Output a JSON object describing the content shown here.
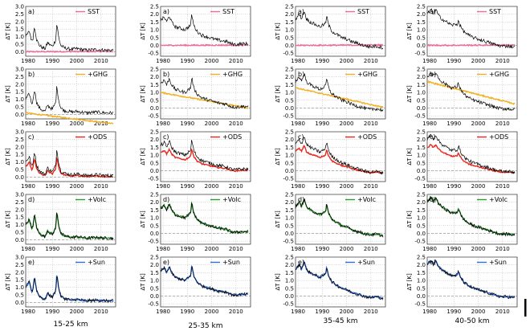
{
  "chart_data": {
    "type": "line",
    "columns": [
      {
        "label": "15-25 km"
      },
      {
        "label": "25-35 km"
      },
      {
        "label": "35-45 km"
      },
      {
        "label": "40-50 km"
      }
    ],
    "rows": [
      {
        "panel_label": "a)",
        "legend": "SST",
        "color": "#f06a9a"
      },
      {
        "panel_label": "b)",
        "legend": "+GHG",
        "color": "#f2b01e"
      },
      {
        "panel_label": "c)",
        "legend": "+ODS",
        "color": "#e8281e"
      },
      {
        "panel_label": "d)",
        "legend": "+Volc",
        "color": "#2a9d2a"
      },
      {
        "panel_label": "e)",
        "legend": "+Sun",
        "color": "#2f6fe0"
      }
    ],
    "ylabel": "ΔT [K]",
    "xlim": [
      1979,
      2016
    ],
    "xticks": [
      "1980",
      "1990",
      "2000",
      "2010"
    ],
    "ylim_by_column": [
      [
        -0.3,
        3.0
      ],
      [
        -0.7,
        2.5
      ],
      [
        -0.7,
        2.5
      ],
      [
        -0.7,
        2.5
      ]
    ],
    "yticks_by_column": [
      [
        "0.0",
        "0.5",
        "1.0",
        "1.5",
        "2.0",
        "2.5",
        "3.0"
      ],
      [
        "-0.5",
        "0.0",
        "0.5",
        "1.0",
        "1.5",
        "2.0",
        "2.5"
      ],
      [
        "-0.5",
        "0.0",
        "0.5",
        "1.0",
        "1.5",
        "2.0",
        "2.5"
      ],
      [
        "-0.5",
        "0.0",
        "0.5",
        "1.0",
        "1.5",
        "2.0",
        "2.5"
      ]
    ],
    "observed_keyframes_by_column": [
      [
        [
          1979,
          1.0
        ],
        [
          1980.5,
          1.35
        ],
        [
          1981.5,
          0.7
        ],
        [
          1982,
          0.9
        ],
        [
          1982.6,
          1.7
        ],
        [
          1983.5,
          0.8
        ],
        [
          1984.5,
          0.45
        ],
        [
          1986,
          0.25
        ],
        [
          1987,
          0.2
        ],
        [
          1988,
          0.6
        ],
        [
          1989,
          0.45
        ],
        [
          1990,
          0.35
        ],
        [
          1991.4,
          0.8
        ],
        [
          1991.8,
          1.9
        ],
        [
          1992.6,
          0.9
        ],
        [
          1993.5,
          0.4
        ],
        [
          1995,
          0.25
        ],
        [
          1998,
          0.15
        ],
        [
          2000,
          0.2
        ],
        [
          2004,
          0.1
        ],
        [
          2008,
          0.15
        ],
        [
          2012,
          0.1
        ],
        [
          2015,
          0.1
        ]
      ],
      [
        [
          1979,
          1.6
        ],
        [
          1980.5,
          1.8
        ],
        [
          1981.5,
          1.5
        ],
        [
          1982.6,
          1.9
        ],
        [
          1983.5,
          1.5
        ],
        [
          1985,
          1.2
        ],
        [
          1987,
          1.1
        ],
        [
          1989,
          1.0
        ],
        [
          1991.4,
          1.3
        ],
        [
          1991.8,
          2.0
        ],
        [
          1992.6,
          1.3
        ],
        [
          1994,
          0.9
        ],
        [
          1996,
          0.65
        ],
        [
          1998,
          0.55
        ],
        [
          2000,
          0.45
        ],
        [
          2002,
          0.35
        ],
        [
          2004,
          0.3
        ],
        [
          2006,
          0.25
        ],
        [
          2008,
          0.1
        ],
        [
          2010,
          0.05
        ],
        [
          2012,
          0.1
        ],
        [
          2015,
          0.1
        ]
      ],
      [
        [
          1979,
          1.7
        ],
        [
          1980.5,
          2.0
        ],
        [
          1981.5,
          1.75
        ],
        [
          1982.6,
          2.2
        ],
        [
          1983.5,
          1.7
        ],
        [
          1985,
          1.5
        ],
        [
          1987,
          1.35
        ],
        [
          1989,
          1.2
        ],
        [
          1991.4,
          1.4
        ],
        [
          1991.8,
          1.9
        ],
        [
          1992.6,
          1.3
        ],
        [
          1994,
          0.9
        ],
        [
          1996,
          0.7
        ],
        [
          1998,
          0.5
        ],
        [
          2000,
          0.4
        ],
        [
          2002,
          0.25
        ],
        [
          2004,
          0.15
        ],
        [
          2006,
          0.05
        ],
        [
          2008,
          -0.05
        ],
        [
          2010,
          -0.1
        ],
        [
          2012,
          -0.05
        ],
        [
          2015,
          -0.15
        ]
      ],
      [
        [
          1979,
          2.0
        ],
        [
          1980.5,
          2.3
        ],
        [
          1981.5,
          2.05
        ],
        [
          1982.6,
          2.3
        ],
        [
          1983.5,
          1.95
        ],
        [
          1985,
          1.7
        ],
        [
          1987,
          1.5
        ],
        [
          1989,
          1.3
        ],
        [
          1991.4,
          1.35
        ],
        [
          1991.8,
          1.6
        ],
        [
          1992.6,
          1.25
        ],
        [
          1994,
          0.9
        ],
        [
          1996,
          0.65
        ],
        [
          1998,
          0.5
        ],
        [
          2000,
          0.4
        ],
        [
          2002,
          0.3
        ],
        [
          2004,
          0.2
        ],
        [
          2006,
          0.1
        ],
        [
          2008,
          0.0
        ],
        [
          2010,
          -0.05
        ],
        [
          2012,
          -0.05
        ],
        [
          2015,
          -0.1
        ]
      ]
    ]
  },
  "scale_bar_icon": "vertical-bar"
}
